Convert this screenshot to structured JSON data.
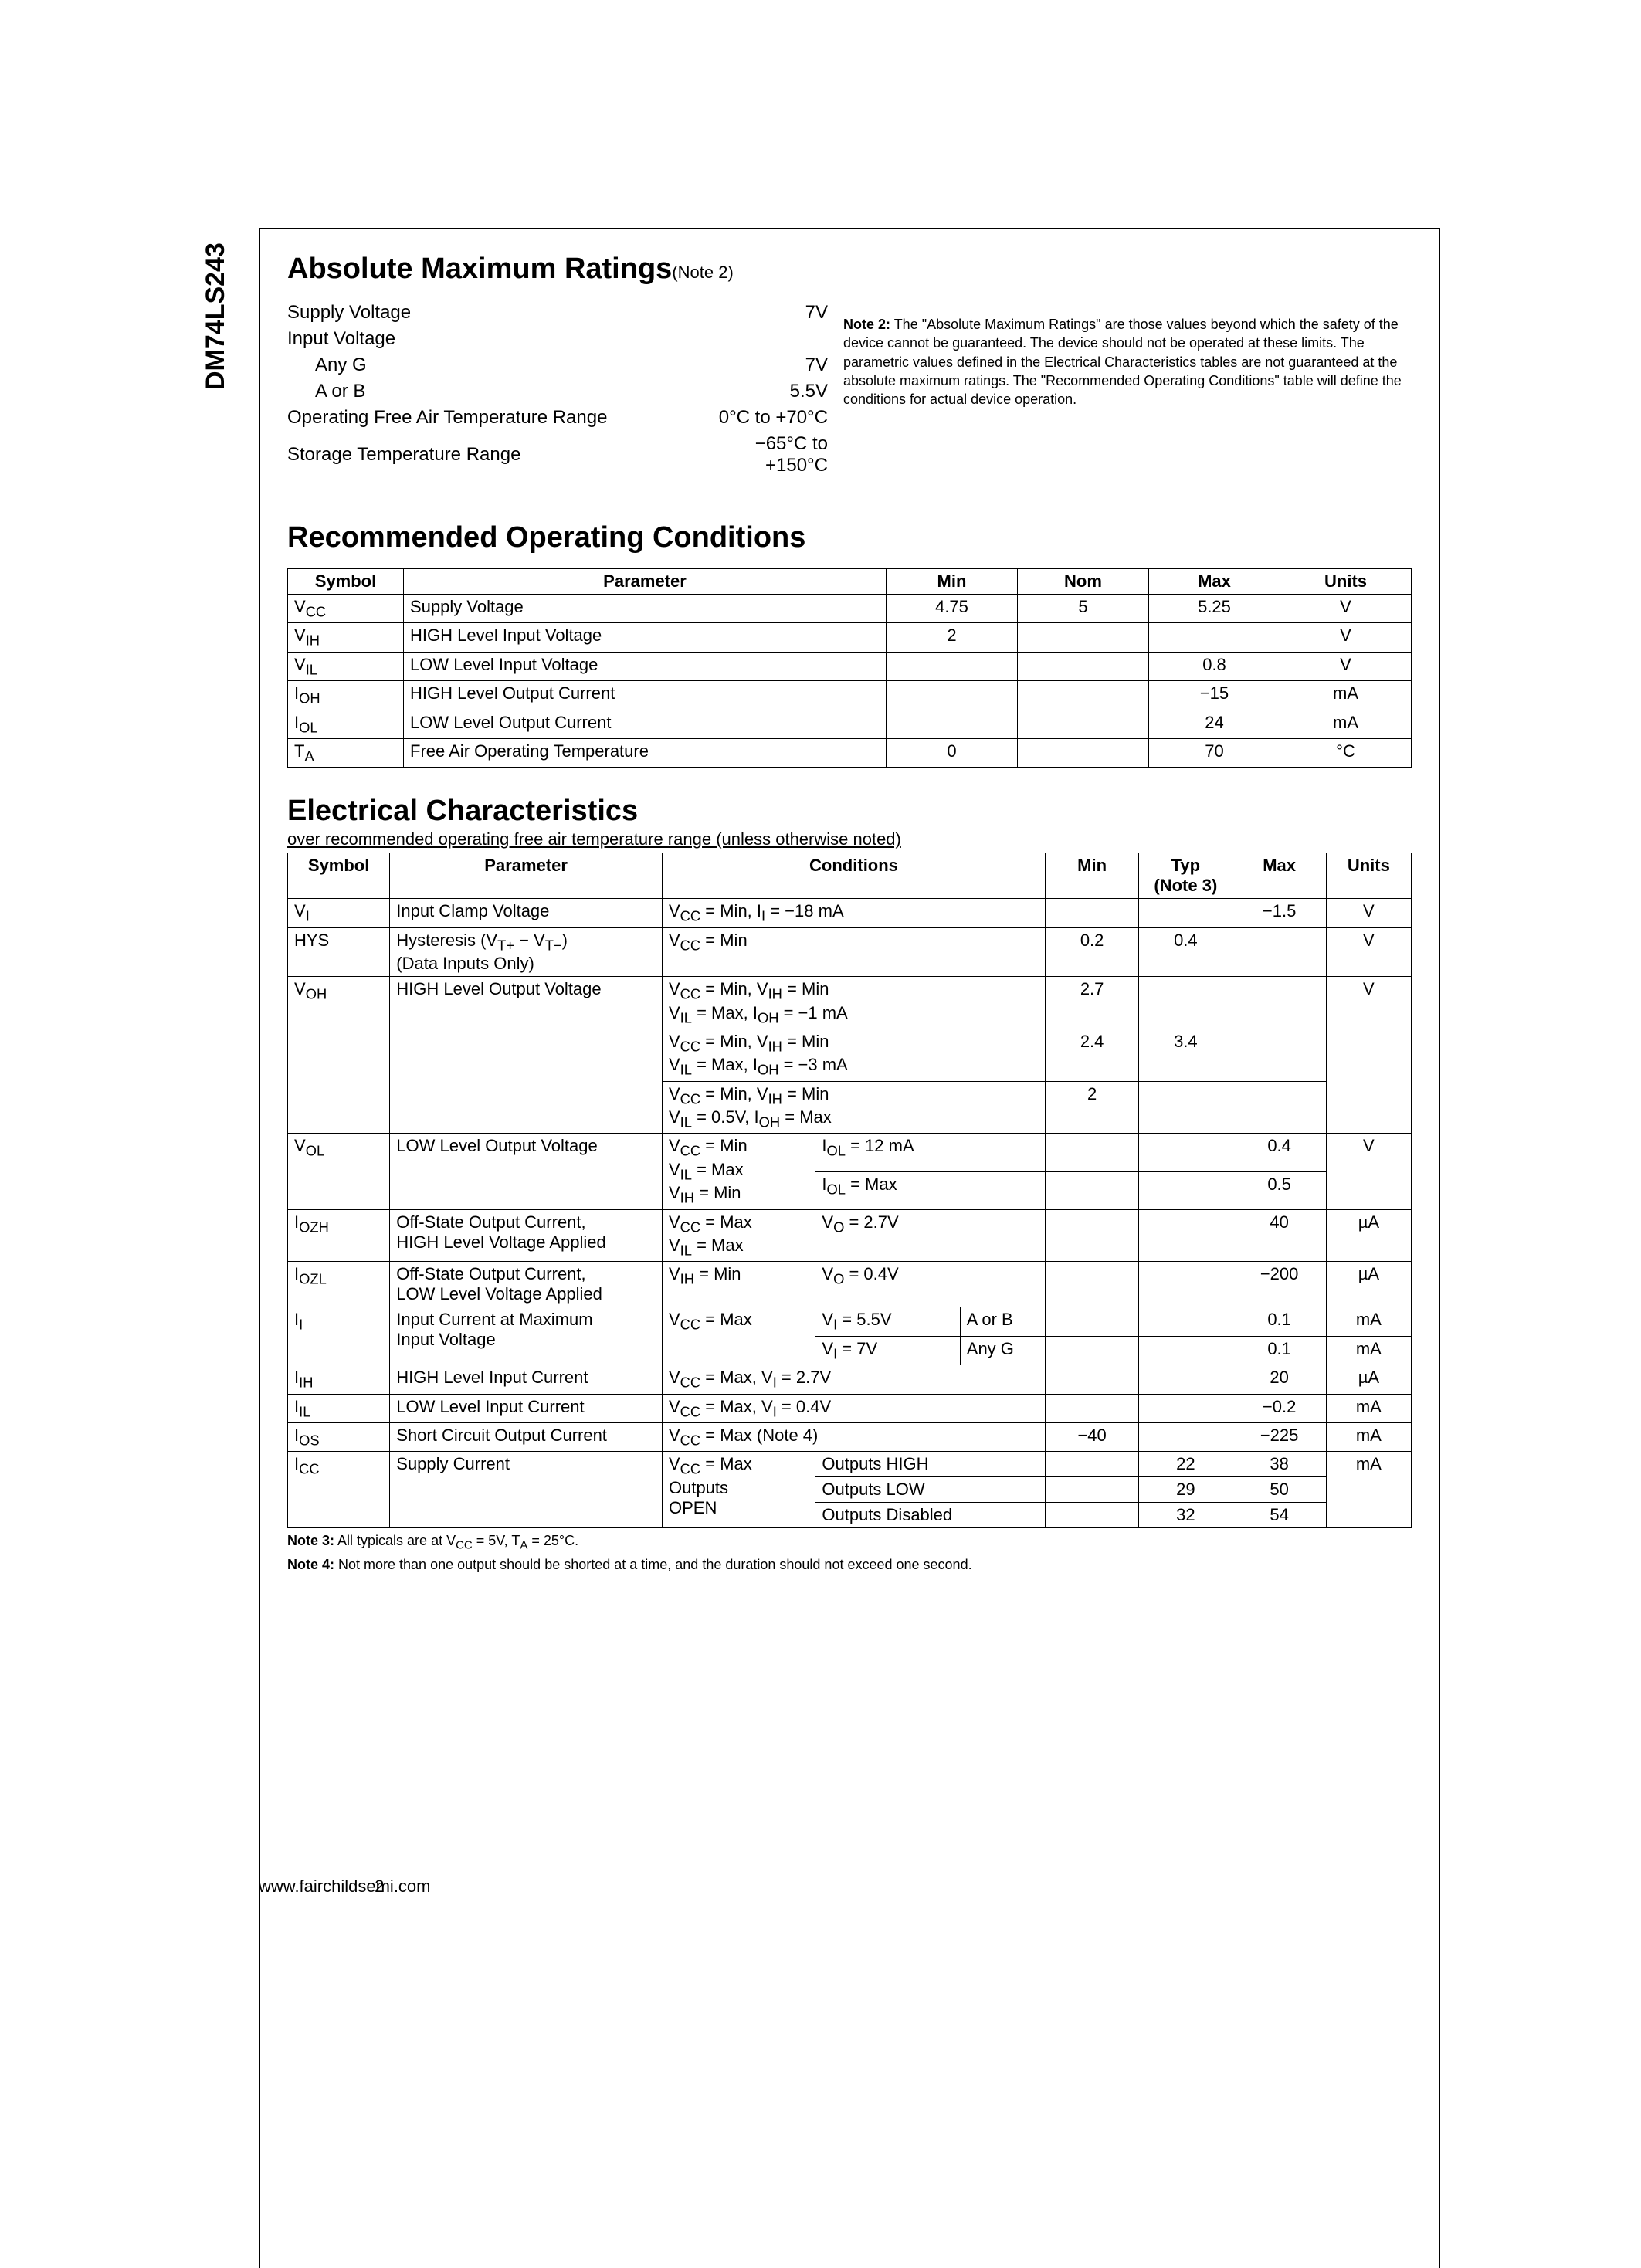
{
  "part_number": "DM74LS243",
  "sections": {
    "amr": {
      "title": "Absolute Maximum Ratings",
      "note_ref": "(Note 2)",
      "rows": [
        {
          "label": "Supply Voltage",
          "value": "7V"
        },
        {
          "label": "Input Voltage",
          "value": ""
        },
        {
          "label": "Any G",
          "value": "7V",
          "indent": true
        },
        {
          "label": "A or B",
          "value": "5.5V",
          "indent": true
        },
        {
          "label": "Operating Free Air Temperature Range",
          "value": "0°C to +70°C"
        },
        {
          "label": "Storage Temperature Range",
          "value": "−65°C to +150°C"
        }
      ],
      "note2_label": "Note 2:",
      "note2_text": " The \"Absolute Maximum Ratings\" are those values beyond which the safety of the device cannot be guaranteed. The device should not be operated at these limits. The parametric values defined in the Electrical Characteristics tables are not guaranteed at the absolute maximum ratings. The \"Recommended Operating Conditions\" table will define the conditions for actual device operation."
    },
    "roc": {
      "title": "Recommended Operating Conditions",
      "headers": [
        "Symbol",
        "Parameter",
        "Min",
        "Nom",
        "Max",
        "Units"
      ],
      "rows": [
        {
          "sym": "V<sub>CC</sub>",
          "param": "Supply Voltage",
          "min": "4.75",
          "nom": "5",
          "max": "5.25",
          "units": "V"
        },
        {
          "sym": "V<sub>IH</sub>",
          "param": "HIGH Level Input Voltage",
          "min": "2",
          "nom": "",
          "max": "",
          "units": "V"
        },
        {
          "sym": "V<sub>IL</sub>",
          "param": "LOW Level Input Voltage",
          "min": "",
          "nom": "",
          "max": "0.8",
          "units": "V"
        },
        {
          "sym": "I<sub>OH</sub>",
          "param": "HIGH Level Output Current",
          "min": "",
          "nom": "",
          "max": "−15",
          "units": "mA"
        },
        {
          "sym": "I<sub>OL</sub>",
          "param": "LOW Level Output Current",
          "min": "",
          "nom": "",
          "max": "24",
          "units": "mA"
        },
        {
          "sym": "T<sub>A</sub>",
          "param": "Free Air Operating Temperature",
          "min": "0",
          "nom": "",
          "max": "70",
          "units": "°C"
        }
      ]
    },
    "ec": {
      "title": "Electrical Characteristics",
      "subtitle": "over recommended operating free air temperature range (unless otherwise noted)",
      "headers": {
        "symbol": "Symbol",
        "parameter": "Parameter",
        "conditions": "Conditions",
        "min": "Min",
        "typ": "Typ<br>(Note 3)",
        "max": "Max",
        "units": "Units"
      },
      "note3": "Note 3: All typicals are at V<sub>CC</sub> = 5V, T<sub>A</sub> = 25°C.",
      "note4": "Note 4: Not more than one output should be shorted at a time, and the duration should not exceed one second."
    }
  },
  "footer": {
    "url": "www.fairchildsemi.com",
    "page": "2"
  }
}
